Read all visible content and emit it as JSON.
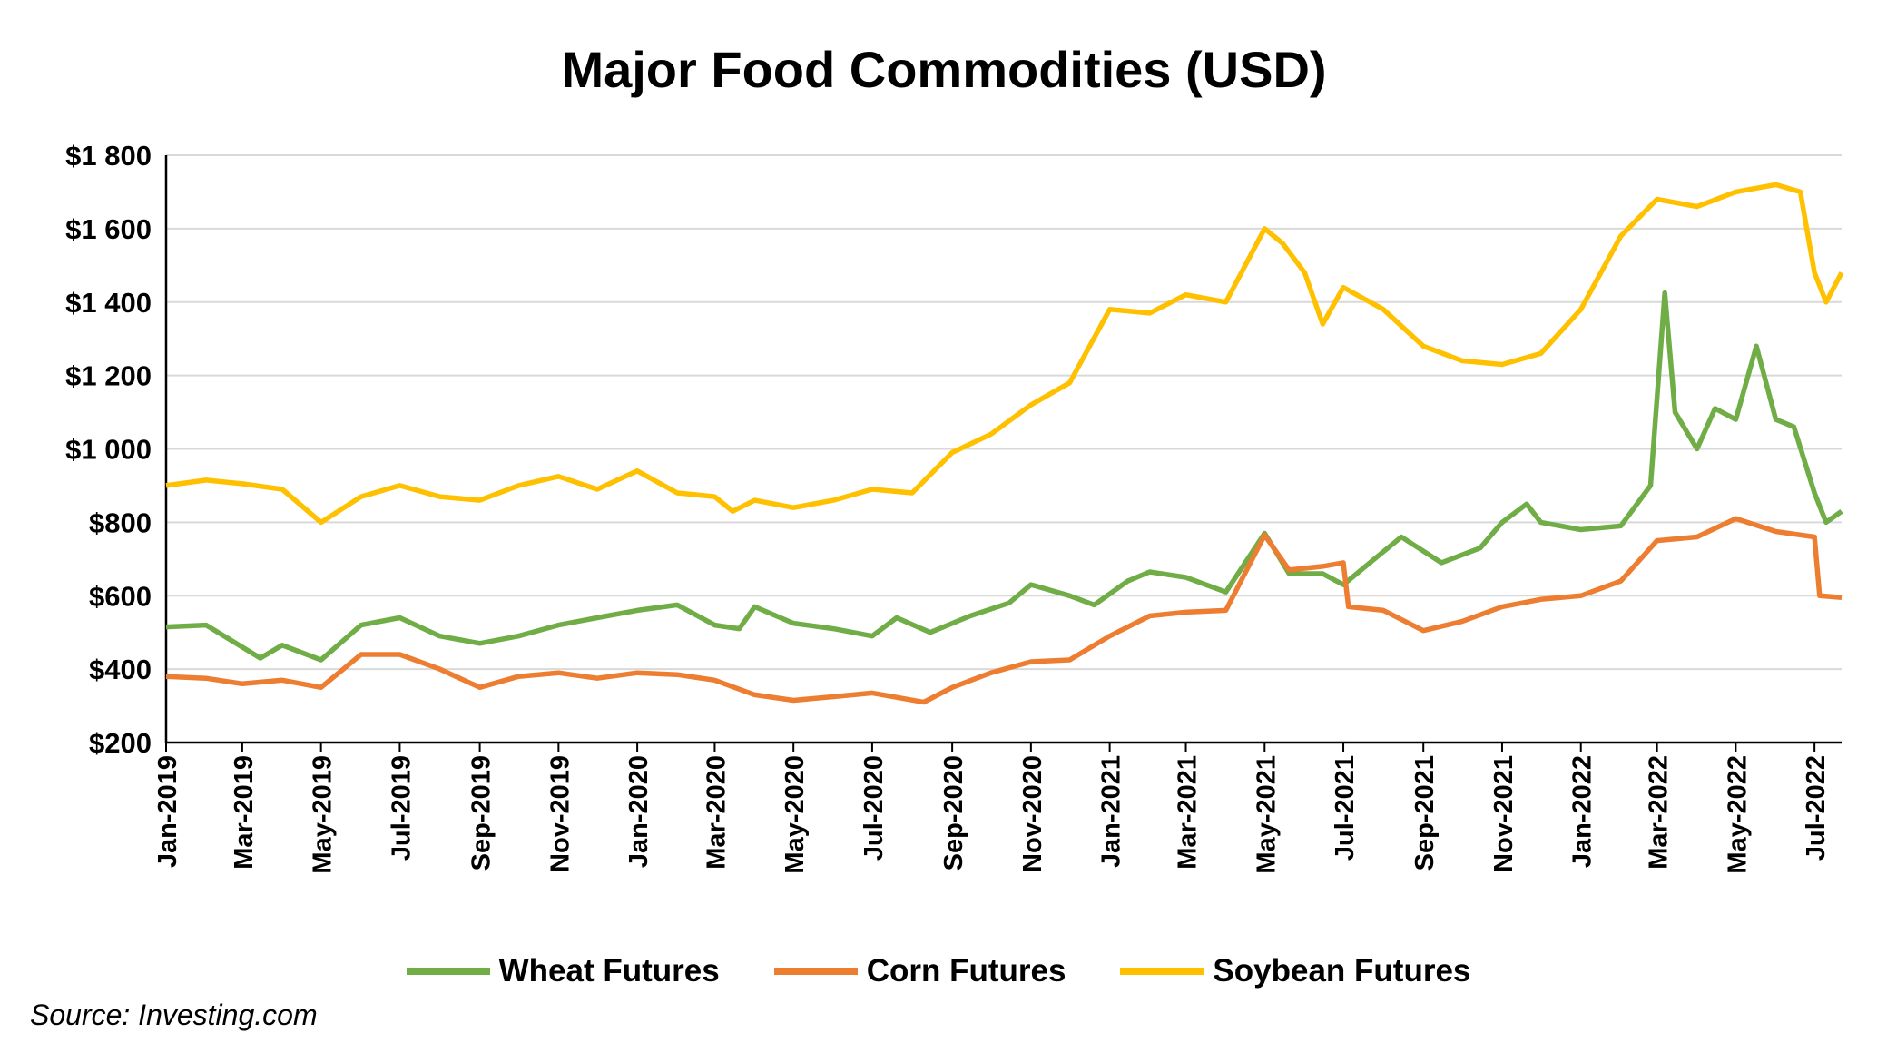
{
  "chart_data": {
    "type": "line",
    "title": "Major Food Commodities (USD)",
    "source": "Source: Investing.com",
    "xlabel": "",
    "ylabel": "",
    "ylim": [
      200,
      1800
    ],
    "xlim": [
      "2019-01-01",
      "2022-07-22"
    ],
    "y_ticks": [
      200,
      400,
      600,
      800,
      1000,
      1200,
      1400,
      1600,
      1800
    ],
    "y_tick_labels": [
      "$200",
      "$400",
      "$600",
      "$800",
      "$1 000",
      "$1 200",
      "$1 400",
      "$1 600",
      "$1 800"
    ],
    "x_ticks": [
      "2019-01-01",
      "2019-03-01",
      "2019-05-01",
      "2019-07-01",
      "2019-09-01",
      "2019-11-01",
      "2020-01-01",
      "2020-03-01",
      "2020-05-01",
      "2020-07-01",
      "2020-09-01",
      "2020-11-01",
      "2021-01-01",
      "2021-03-01",
      "2021-05-01",
      "2021-07-01",
      "2021-09-01",
      "2021-11-01",
      "2022-01-01",
      "2022-03-01",
      "2022-05-01",
      "2022-07-01"
    ],
    "x_tick_labels": [
      "Jan-2019",
      "Mar-2019",
      "May-2019",
      "Jul-2019",
      "Sep-2019",
      "Nov-2019",
      "Jan-2020",
      "Mar-2020",
      "May-2020",
      "Jul-2020",
      "Sep-2020",
      "Nov-2020",
      "Jan-2021",
      "Mar-2021",
      "May-2021",
      "Jul-2021",
      "Sep-2021",
      "Nov-2021",
      "Jan-2022",
      "Mar-2022",
      "May-2022",
      "Jul-2022"
    ],
    "grid": "horizontal",
    "legend_position": "bottom",
    "series": [
      {
        "name": "Wheat Futures",
        "color": "#70AD47",
        "points": [
          [
            "2019-01-01",
            515
          ],
          [
            "2019-02-01",
            520
          ],
          [
            "2019-03-15",
            430
          ],
          [
            "2019-04-01",
            465
          ],
          [
            "2019-05-01",
            425
          ],
          [
            "2019-06-01",
            520
          ],
          [
            "2019-07-01",
            540
          ],
          [
            "2019-08-01",
            490
          ],
          [
            "2019-09-01",
            470
          ],
          [
            "2019-10-01",
            490
          ],
          [
            "2019-11-01",
            520
          ],
          [
            "2019-12-01",
            540
          ],
          [
            "2020-01-01",
            560
          ],
          [
            "2020-02-01",
            575
          ],
          [
            "2020-03-01",
            520
          ],
          [
            "2020-03-20",
            510
          ],
          [
            "2020-04-01",
            570
          ],
          [
            "2020-05-01",
            525
          ],
          [
            "2020-06-01",
            510
          ],
          [
            "2020-07-01",
            490
          ],
          [
            "2020-07-20",
            540
          ],
          [
            "2020-08-15",
            500
          ],
          [
            "2020-09-15",
            545
          ],
          [
            "2020-10-15",
            580
          ],
          [
            "2020-11-01",
            630
          ],
          [
            "2020-12-01",
            600
          ],
          [
            "2020-12-20",
            575
          ],
          [
            "2021-01-15",
            640
          ],
          [
            "2021-02-01",
            665
          ],
          [
            "2021-03-01",
            650
          ],
          [
            "2021-04-01",
            610
          ],
          [
            "2021-05-01",
            770
          ],
          [
            "2021-05-20",
            660
          ],
          [
            "2021-06-15",
            660
          ],
          [
            "2021-07-01",
            630
          ],
          [
            "2021-08-01",
            720
          ],
          [
            "2021-08-15",
            760
          ],
          [
            "2021-09-15",
            690
          ],
          [
            "2021-10-15",
            730
          ],
          [
            "2021-11-01",
            800
          ],
          [
            "2021-11-20",
            850
          ],
          [
            "2021-12-01",
            800
          ],
          [
            "2022-01-01",
            780
          ],
          [
            "2022-02-01",
            790
          ],
          [
            "2022-02-24",
            900
          ],
          [
            "2022-03-07",
            1425
          ],
          [
            "2022-03-15",
            1100
          ],
          [
            "2022-04-01",
            1000
          ],
          [
            "2022-04-15",
            1110
          ],
          [
            "2022-05-01",
            1080
          ],
          [
            "2022-05-17",
            1280
          ],
          [
            "2022-06-01",
            1080
          ],
          [
            "2022-06-15",
            1060
          ],
          [
            "2022-07-01",
            880
          ],
          [
            "2022-07-10",
            800
          ],
          [
            "2022-07-22",
            830
          ]
        ]
      },
      {
        "name": "Corn Futures",
        "color": "#ED7D31",
        "points": [
          [
            "2019-01-01",
            380
          ],
          [
            "2019-02-01",
            375
          ],
          [
            "2019-03-01",
            360
          ],
          [
            "2019-04-01",
            370
          ],
          [
            "2019-05-01",
            350
          ],
          [
            "2019-06-01",
            440
          ],
          [
            "2019-07-01",
            440
          ],
          [
            "2019-08-01",
            400
          ],
          [
            "2019-09-01",
            350
          ],
          [
            "2019-10-01",
            380
          ],
          [
            "2019-11-01",
            390
          ],
          [
            "2019-12-01",
            375
          ],
          [
            "2020-01-01",
            390
          ],
          [
            "2020-02-01",
            385
          ],
          [
            "2020-03-01",
            370
          ],
          [
            "2020-04-01",
            330
          ],
          [
            "2020-05-01",
            315
          ],
          [
            "2020-06-01",
            325
          ],
          [
            "2020-07-01",
            335
          ],
          [
            "2020-08-10",
            310
          ],
          [
            "2020-09-01",
            350
          ],
          [
            "2020-10-01",
            390
          ],
          [
            "2020-11-01",
            420
          ],
          [
            "2020-12-01",
            425
          ],
          [
            "2021-01-01",
            490
          ],
          [
            "2021-02-01",
            545
          ],
          [
            "2021-03-01",
            555
          ],
          [
            "2021-04-01",
            560
          ],
          [
            "2021-05-01",
            765
          ],
          [
            "2021-05-20",
            670
          ],
          [
            "2021-06-15",
            680
          ],
          [
            "2021-07-01",
            690
          ],
          [
            "2021-07-05",
            570
          ],
          [
            "2021-08-01",
            560
          ],
          [
            "2021-09-01",
            505
          ],
          [
            "2021-10-01",
            530
          ],
          [
            "2021-11-01",
            570
          ],
          [
            "2021-12-01",
            590
          ],
          [
            "2022-01-01",
            600
          ],
          [
            "2022-02-01",
            640
          ],
          [
            "2022-03-01",
            750
          ],
          [
            "2022-04-01",
            760
          ],
          [
            "2022-05-01",
            810
          ],
          [
            "2022-06-01",
            775
          ],
          [
            "2022-07-01",
            760
          ],
          [
            "2022-07-05",
            600
          ],
          [
            "2022-07-22",
            595
          ]
        ]
      },
      {
        "name": "Soybean Futures",
        "color": "#FFC000",
        "points": [
          [
            "2019-01-01",
            900
          ],
          [
            "2019-02-01",
            915
          ],
          [
            "2019-03-01",
            905
          ],
          [
            "2019-04-01",
            890
          ],
          [
            "2019-05-01",
            800
          ],
          [
            "2019-06-01",
            870
          ],
          [
            "2019-07-01",
            900
          ],
          [
            "2019-08-01",
            870
          ],
          [
            "2019-09-01",
            860
          ],
          [
            "2019-10-01",
            900
          ],
          [
            "2019-11-01",
            925
          ],
          [
            "2019-12-01",
            890
          ],
          [
            "2020-01-01",
            940
          ],
          [
            "2020-02-01",
            880
          ],
          [
            "2020-03-01",
            870
          ],
          [
            "2020-03-15",
            830
          ],
          [
            "2020-04-01",
            860
          ],
          [
            "2020-05-01",
            840
          ],
          [
            "2020-06-01",
            860
          ],
          [
            "2020-07-01",
            890
          ],
          [
            "2020-08-01",
            880
          ],
          [
            "2020-09-01",
            990
          ],
          [
            "2020-10-01",
            1040
          ],
          [
            "2020-11-01",
            1120
          ],
          [
            "2020-12-01",
            1180
          ],
          [
            "2021-01-01",
            1380
          ],
          [
            "2021-02-01",
            1370
          ],
          [
            "2021-03-01",
            1420
          ],
          [
            "2021-04-01",
            1400
          ],
          [
            "2021-05-01",
            1600
          ],
          [
            "2021-05-15",
            1560
          ],
          [
            "2021-06-01",
            1480
          ],
          [
            "2021-06-15",
            1340
          ],
          [
            "2021-07-01",
            1440
          ],
          [
            "2021-08-01",
            1380
          ],
          [
            "2021-09-01",
            1280
          ],
          [
            "2021-10-01",
            1240
          ],
          [
            "2021-11-01",
            1230
          ],
          [
            "2021-12-01",
            1260
          ],
          [
            "2022-01-01",
            1380
          ],
          [
            "2022-02-01",
            1580
          ],
          [
            "2022-03-01",
            1680
          ],
          [
            "2022-04-01",
            1660
          ],
          [
            "2022-05-01",
            1700
          ],
          [
            "2022-06-01",
            1720
          ],
          [
            "2022-06-20",
            1700
          ],
          [
            "2022-07-01",
            1480
          ],
          [
            "2022-07-10",
            1400
          ],
          [
            "2022-07-22",
            1480
          ]
        ]
      }
    ]
  }
}
